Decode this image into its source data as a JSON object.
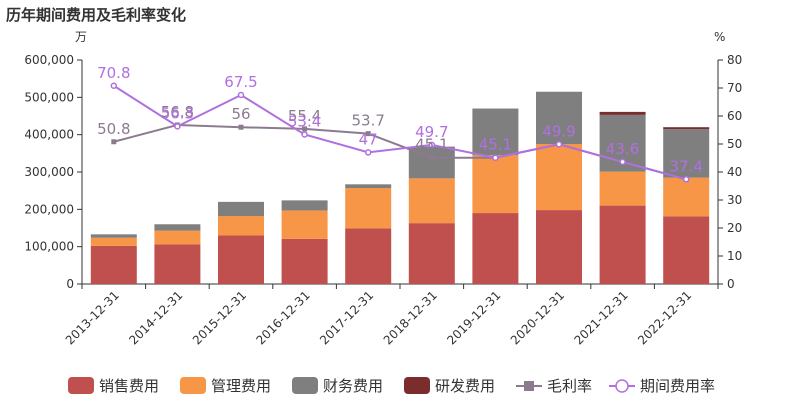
{
  "chart_data": {
    "type": "bar",
    "title": "历年期间费用及毛利率变化",
    "left_unit": "万",
    "right_unit": "%",
    "categories": [
      "2013-12-31",
      "2014-12-31",
      "2015-12-31",
      "2016-12-31",
      "2017-12-31",
      "2018-12-31",
      "2019-12-31",
      "2020-12-31",
      "2021-12-31",
      "2022-12-31"
    ],
    "y_left": {
      "ticks": [
        "0",
        "100,000",
        "200,000",
        "300,000",
        "400,000",
        "500,000",
        "600,000"
      ],
      "ylim": [
        0,
        600000
      ]
    },
    "y_right": {
      "ticks": [
        "0",
        "10",
        "20",
        "30",
        "40",
        "50",
        "60",
        "70",
        "80"
      ],
      "ylim": [
        0,
        80
      ]
    },
    "stacked_series": [
      {
        "name": "销售费用",
        "color": "#c0504d",
        "values": [
          102000,
          106000,
          130000,
          121000,
          149000,
          163000,
          190000,
          198000,
          210000,
          181000
        ]
      },
      {
        "name": "管理费用",
        "color": "#f79646",
        "values": [
          22000,
          37000,
          52000,
          76000,
          108000,
          120000,
          155000,
          177000,
          91000,
          104000
        ]
      },
      {
        "name": "财务费用",
        "color": "#7f7f7f",
        "values": [
          9000,
          17000,
          38000,
          27000,
          10000,
          85000,
          125000,
          140000,
          152000,
          130000
        ]
      },
      {
        "name": "研发费用",
        "color": "#7b2c2c",
        "values": [
          0,
          0,
          0,
          0,
          0,
          0,
          0,
          0,
          8000,
          5000
        ]
      }
    ],
    "line_series": [
      {
        "name": "毛利率",
        "color": "#8c7b8f",
        "marker": "square",
        "values": [
          50.8,
          56.8,
          56,
          55.4,
          53.7,
          45.1,
          45.1,
          49.9,
          43.6,
          37.4
        ],
        "labels": [
          "50.8",
          "56.8",
          "56",
          "55.4",
          "53.7",
          "45.1",
          "45.1",
          "49.9",
          "43.6",
          "37.4"
        ]
      },
      {
        "name": "期间费用率",
        "color": "#b070e0",
        "marker": "circle",
        "values": [
          70.8,
          56.3,
          67.5,
          53.4,
          47,
          49.7,
          45.1,
          49.9,
          43.6,
          37.4
        ],
        "labels": [
          "70.8",
          "56.3",
          "67.5",
          "53.4",
          "47",
          "49.7",
          "45.1",
          "49.9",
          "43.6",
          "37.4"
        ]
      }
    ],
    "grid": false,
    "legend": "bottom"
  }
}
